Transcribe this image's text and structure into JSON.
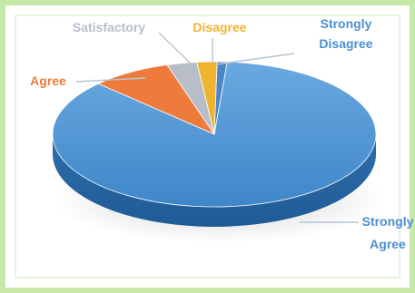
{
  "chart_data": {
    "type": "pie",
    "title": "",
    "series": [
      {
        "name": "",
        "values": [
          {
            "label": "Strongly Agree",
            "value": 86
          },
          {
            "label": "Agree",
            "value": 8
          },
          {
            "label": "Satisfactory",
            "value": 3
          },
          {
            "label": "Disagree",
            "value": 2
          },
          {
            "label": "Strongly Disagree",
            "value": 1
          }
        ]
      }
    ],
    "legend": "none",
    "labels": {
      "strongly_disagree_line1": "Strongly",
      "strongly_disagree_line2": "Disagree",
      "disagree": "Disagree",
      "satisfactory": "Satisfactory",
      "agree": "Agree",
      "strongly_agree_line1": "Strongly",
      "strongly_agree_line2": "Agree"
    },
    "colors": {
      "strongly_agree": "#4f95d6",
      "agree": "#ee7b3b",
      "satisfactory": "#b8bec8",
      "disagree": "#f0b330",
      "strongly_disagree": "#4a86c8",
      "leader_line": "#b7c4cf",
      "background": "#c7e8a6"
    }
  }
}
